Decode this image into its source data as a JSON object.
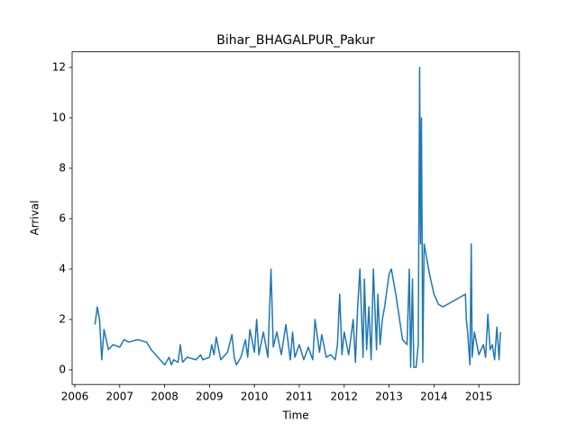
{
  "chart_data": {
    "type": "line",
    "title": "Bihar_BHAGALPUR_Pakur",
    "xlabel": "Time",
    "ylabel": "Arrival",
    "xlim": [
      2005.94,
      2015.9
    ],
    "ylim": [
      -0.58,
      12.62
    ],
    "xticks": [
      2006,
      2007,
      2008,
      2009,
      2010,
      2011,
      2012,
      2013,
      2014,
      2015
    ],
    "yticks": [
      0,
      2,
      4,
      6,
      8,
      10,
      12
    ],
    "x": [
      2006.45,
      2006.5,
      2006.55,
      2006.6,
      2006.65,
      2006.7,
      2006.75,
      2006.85,
      2007.0,
      2007.1,
      2007.2,
      2007.4,
      2007.6,
      2007.7,
      2007.8,
      2007.9,
      2008.0,
      2008.1,
      2008.15,
      2008.2,
      2008.3,
      2008.35,
      2008.4,
      2008.5,
      2008.7,
      2008.8,
      2008.85,
      2009.0,
      2009.05,
      2009.1,
      2009.15,
      2009.25,
      2009.4,
      2009.5,
      2009.55,
      2009.6,
      2009.7,
      2009.8,
      2009.85,
      2009.9,
      2010.0,
      2010.05,
      2010.1,
      2010.2,
      2010.3,
      2010.37,
      2010.42,
      2010.5,
      2010.6,
      2010.7,
      2010.8,
      2010.85,
      2010.9,
      2011.0,
      2011.1,
      2011.2,
      2011.3,
      2011.35,
      2011.45,
      2011.5,
      2011.6,
      2011.7,
      2011.8,
      2011.85,
      2011.9,
      2011.95,
      2012.0,
      2012.1,
      2012.2,
      2012.25,
      2012.3,
      2012.35,
      2012.42,
      2012.45,
      2012.5,
      2012.55,
      2012.6,
      2012.65,
      2012.72,
      2012.75,
      2012.8,
      2012.85,
      2012.9,
      2013.0,
      2013.05,
      2013.15,
      2013.3,
      2013.4,
      2013.45,
      2013.48,
      2013.52,
      2013.55,
      2013.6,
      2013.65,
      2013.68,
      2013.7,
      2013.72,
      2013.75,
      2013.78,
      2013.9,
      2014.0,
      2014.1,
      2014.2,
      2014.4,
      2014.6,
      2014.7,
      2014.72,
      2014.75,
      2014.8,
      2014.83,
      2014.85,
      2014.9,
      2015.0,
      2015.1,
      2015.15,
      2015.2,
      2015.25,
      2015.3,
      2015.35,
      2015.4,
      2015.45,
      2015.48
    ],
    "series": [
      {
        "name": "Arrival",
        "color": "#1f77b4",
        "values": [
          1.8,
          2.5,
          2.0,
          0.4,
          1.6,
          1.2,
          0.8,
          1.0,
          0.9,
          1.2,
          1.1,
          1.2,
          1.1,
          0.8,
          0.6,
          0.4,
          0.2,
          0.5,
          0.2,
          0.4,
          0.3,
          1.0,
          0.3,
          0.5,
          0.4,
          0.6,
          0.4,
          0.5,
          1.0,
          0.6,
          1.3,
          0.4,
          0.7,
          1.4,
          0.5,
          0.2,
          0.5,
          1.2,
          0.5,
          1.6,
          0.7,
          2.0,
          0.6,
          1.5,
          0.5,
          4.0,
          0.9,
          1.5,
          0.6,
          1.8,
          0.4,
          1.5,
          0.5,
          1.0,
          0.4,
          0.9,
          0.4,
          2.0,
          0.7,
          1.4,
          0.5,
          0.6,
          0.4,
          1.0,
          3.0,
          0.6,
          1.5,
          0.6,
          2.0,
          0.3,
          2.5,
          4.0,
          0.5,
          3.6,
          0.8,
          2.5,
          0.4,
          4.0,
          0.8,
          3.0,
          1.0,
          2.0,
          2.5,
          3.8,
          4.0,
          3.0,
          1.2,
          1.0,
          4.0,
          0.1,
          3.6,
          0.1,
          0.1,
          1.0,
          12.0,
          5.0,
          10.0,
          0.3,
          5.0,
          3.8,
          3.0,
          2.6,
          2.5,
          2.7,
          2.9,
          3.0,
          2.0,
          1.5,
          0.2,
          5.0,
          0.5,
          1.5,
          0.6,
          1.0,
          0.5,
          2.2,
          0.8,
          1.0,
          0.4,
          1.7,
          0.4,
          1.5
        ]
      }
    ]
  }
}
